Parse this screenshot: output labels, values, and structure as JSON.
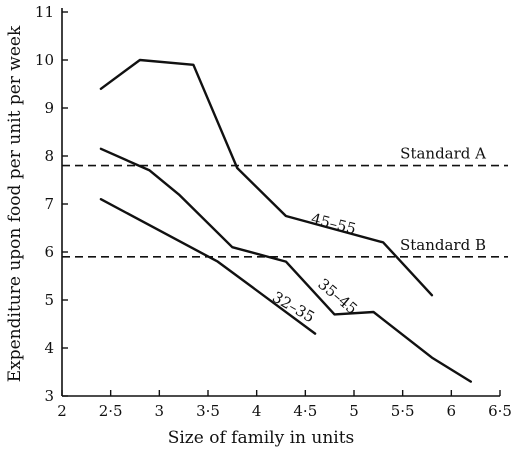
{
  "chart_data": {
    "type": "line",
    "title": "",
    "xlabel": "Size of family in units",
    "ylabel": "Expenditure upon food per unit per week",
    "xlim": [
      2,
      6.5
    ],
    "ylim": [
      3,
      11
    ],
    "x_ticks": [
      {
        "value": 2,
        "label": "2"
      },
      {
        "value": 2.5,
        "label": "2·5"
      },
      {
        "value": 3,
        "label": "3"
      },
      {
        "value": 3.5,
        "label": "3·5"
      },
      {
        "value": 4,
        "label": "4"
      },
      {
        "value": 4.5,
        "label": "4·5"
      },
      {
        "value": 5,
        "label": "5"
      },
      {
        "value": 5.5,
        "label": "5·5"
      },
      {
        "value": 6,
        "label": "6"
      },
      {
        "value": 6.5,
        "label": "6·5"
      }
    ],
    "y_ticks": [
      {
        "value": 3,
        "label": "3"
      },
      {
        "value": 4,
        "label": "4"
      },
      {
        "value": 5,
        "label": "5"
      },
      {
        "value": 6,
        "label": "6"
      },
      {
        "value": 7,
        "label": "7"
      },
      {
        "value": 8,
        "label": "8"
      },
      {
        "value": 9,
        "label": "9"
      },
      {
        "value": 10,
        "label": "10"
      },
      {
        "value": 11,
        "label": "11"
      }
    ],
    "grid": false,
    "series": [
      {
        "name": "45–55",
        "label_at": {
          "x": 4.55,
          "y": 6.6,
          "rotate": 14
        },
        "points": [
          [
            2.4,
            9.4
          ],
          [
            2.8,
            10.0
          ],
          [
            3.35,
            9.9
          ],
          [
            3.8,
            7.75
          ],
          [
            4.3,
            6.75
          ],
          [
            5.3,
            6.2
          ],
          [
            5.8,
            5.1
          ]
        ]
      },
      {
        "name": "35–45",
        "label_at": {
          "x": 4.62,
          "y": 5.3,
          "rotate": 40
        },
        "points": [
          [
            2.4,
            8.15
          ],
          [
            2.9,
            7.7
          ],
          [
            3.2,
            7.2
          ],
          [
            3.75,
            6.1
          ],
          [
            4.3,
            5.8
          ],
          [
            4.8,
            4.7
          ],
          [
            5.2,
            4.75
          ],
          [
            5.8,
            3.8
          ],
          [
            6.2,
            3.3
          ]
        ]
      },
      {
        "name": "32–35",
        "label_at": {
          "x": 4.15,
          "y": 5.0,
          "rotate": 30
        },
        "points": [
          [
            2.4,
            7.1
          ],
          [
            3.6,
            5.8
          ],
          [
            4.6,
            4.3
          ]
        ]
      }
    ],
    "reference_lines": [
      {
        "name": "Standard A",
        "y": 7.8
      },
      {
        "name": "Standard B",
        "y": 5.9
      }
    ]
  }
}
